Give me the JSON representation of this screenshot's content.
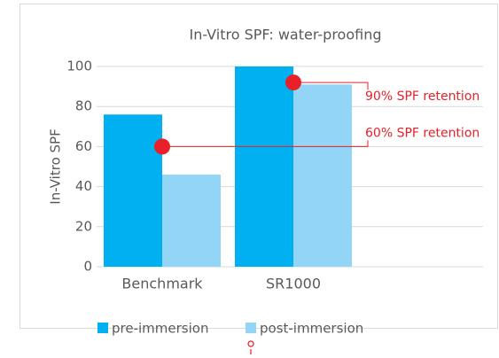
{
  "chart_data": {
    "type": "bar",
    "title": "In-Vitro SPF: water-proofing",
    "y_label": "In-Vitro SPF",
    "categories": [
      "Benchmark",
      "SR1000"
    ],
    "series": [
      {
        "name": "pre-immersion",
        "color": "#00b0f0",
        "values": [
          76,
          100
        ]
      },
      {
        "name": "post-immersion",
        "color": "#92d5f6",
        "values": [
          46,
          91
        ]
      }
    ],
    "ylim": [
      0,
      100
    ],
    "yticks": [
      0,
      20,
      40,
      60,
      80,
      100
    ],
    "grid": true,
    "annotations": [
      {
        "text": "60% SPF retention",
        "category": 0,
        "y": 60,
        "color": "#e8202a"
      },
      {
        "text": "90% SPF retention",
        "category": 1,
        "y": 92,
        "color": "#e8202a"
      }
    ],
    "legend": "bottom"
  }
}
